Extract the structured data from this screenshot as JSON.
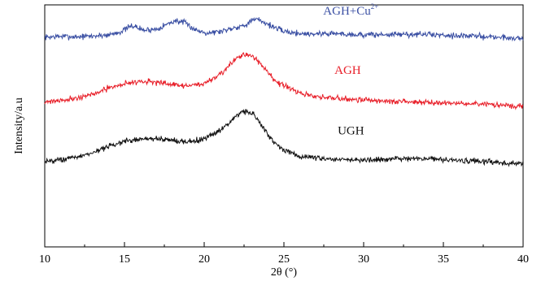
{
  "chart_data": {
    "type": "line",
    "title": "",
    "xlabel": "2θ (°)",
    "ylabel": "Intensity/a.u",
    "xlim": [
      10,
      40
    ],
    "ylim": [
      0,
      100
    ],
    "xticks": [
      "10",
      "15",
      "20",
      "25",
      "30",
      "35",
      "40"
    ],
    "yticks_shown": false,
    "grid": false,
    "legend": "none (inline curve labels)",
    "series": [
      {
        "name": "AGH+Cu2+",
        "label_main": "AGH+Cu",
        "label_sup": "2+",
        "color": "#3A4FA3",
        "noise": 1.2,
        "seed": 7,
        "x": [
          10,
          11,
          12,
          13,
          14,
          14.8,
          15.5,
          16.2,
          17,
          17.6,
          18.2,
          18.8,
          19.5,
          20.2,
          21,
          21.8,
          22.5,
          23,
          23.4,
          24,
          24.8,
          25.5,
          26.5,
          28,
          30,
          32,
          34,
          36,
          38,
          40
        ],
        "y": [
          86.6,
          87.0,
          86.8,
          87.1,
          87.6,
          89.0,
          91.5,
          89.5,
          90.0,
          91.8,
          93.5,
          92.5,
          89.5,
          88.5,
          89.0,
          90.5,
          91.5,
          93.5,
          94.0,
          92.0,
          89.5,
          88.5,
          88.0,
          88.2,
          87.6,
          87.8,
          87.8,
          87.3,
          86.8,
          86.1
        ]
      },
      {
        "name": "AGH",
        "label_main": "AGH",
        "label_sup": "",
        "color": "#E8202A",
        "noise": 1.1,
        "seed": 21,
        "x": [
          10,
          11,
          12,
          13,
          14,
          15,
          16,
          17,
          18,
          19,
          20,
          20.8,
          21.5,
          22,
          22.5,
          23,
          23.5,
          24,
          24.5,
          25,
          26,
          27,
          28,
          30,
          32,
          34,
          36,
          38,
          40
        ],
        "y": [
          60.0,
          60.6,
          61.5,
          63.0,
          65.5,
          67.5,
          68.5,
          68.0,
          67.0,
          66.5,
          67.5,
          70.5,
          74.5,
          77.5,
          79.5,
          79.0,
          76.0,
          72.0,
          68.5,
          66.5,
          63.5,
          62.0,
          61.5,
          60.8,
          60.0,
          59.8,
          59.2,
          58.8,
          58.0
        ]
      },
      {
        "name": "UGH",
        "label_main": "UGH",
        "label_sup": "",
        "color": "#111111",
        "noise": 1.1,
        "seed": 43,
        "x": [
          10,
          11,
          12,
          13,
          14,
          15,
          16,
          17,
          18,
          19,
          20,
          20.8,
          21.5,
          22,
          22.5,
          23,
          23.5,
          24,
          24.5,
          25,
          26,
          27,
          28,
          30,
          32,
          34,
          36,
          38,
          40
        ],
        "y": [
          35.5,
          36.0,
          37.0,
          39.0,
          41.5,
          43.5,
          44.5,
          44.8,
          44.0,
          43.5,
          44.5,
          47.5,
          51.0,
          54.0,
          56.0,
          55.5,
          51.0,
          46.5,
          42.5,
          40.0,
          37.5,
          36.5,
          36.3,
          35.9,
          36.3,
          36.6,
          35.7,
          35.0,
          34.3
        ]
      }
    ],
    "annotations": [
      {
        "series": 0,
        "x": 29.2,
        "y": 96.0
      },
      {
        "series": 1,
        "x": 29.0,
        "y": 71.5
      },
      {
        "series": 2,
        "x": 29.2,
        "y": 46.5
      }
    ]
  }
}
